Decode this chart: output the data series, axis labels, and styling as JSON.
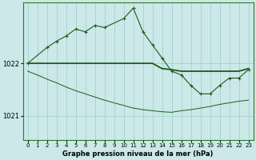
{
  "background_color": "#cce8e8",
  "grid_color": "#99cccc",
  "line_color": "#1a5c1a",
  "title": "Graphe pression niveau de la mer (hPa)",
  "yticks": [
    1021,
    1022
  ],
  "xticks": [
    0,
    1,
    2,
    3,
    4,
    5,
    6,
    7,
    8,
    9,
    10,
    11,
    12,
    13,
    14,
    15,
    16,
    17,
    18,
    19,
    20,
    21,
    22,
    23
  ],
  "xlim": [
    -0.5,
    23.5
  ],
  "ylim": [
    1020.55,
    1023.15
  ],
  "line_flat_x": [
    0,
    1,
    2,
    3,
    4,
    5,
    6,
    7,
    8,
    9,
    10,
    11,
    12,
    13,
    14,
    15,
    16,
    17,
    18,
    19,
    20,
    21,
    22,
    23
  ],
  "line_flat_y": [
    1022.0,
    1022.0,
    1022.0,
    1022.0,
    1022.0,
    1022.0,
    1022.0,
    1022.0,
    1022.0,
    1022.0,
    1022.0,
    1022.0,
    1022.0,
    1022.0,
    1021.9,
    1021.88,
    1021.85,
    1021.85,
    1021.85,
    1021.85,
    1021.85,
    1021.85,
    1021.85,
    1021.9
  ],
  "line_slow_x": [
    0,
    1,
    2,
    3,
    4,
    5,
    6,
    7,
    8,
    9,
    10,
    11,
    12,
    13,
    14,
    15,
    16,
    17,
    18,
    19,
    20,
    21,
    22,
    23
  ],
  "line_slow_y": [
    1021.85,
    1021.78,
    1021.7,
    1021.63,
    1021.55,
    1021.48,
    1021.42,
    1021.36,
    1021.3,
    1021.25,
    1021.2,
    1021.15,
    1021.12,
    1021.1,
    1021.08,
    1021.07,
    1021.1,
    1021.12,
    1021.15,
    1021.18,
    1021.22,
    1021.25,
    1021.28,
    1021.3
  ],
  "line_volatile_x": [
    0,
    2,
    3,
    4,
    5,
    6,
    7,
    8,
    10,
    11,
    12,
    13,
    14,
    15,
    16,
    17,
    18,
    19,
    20,
    21,
    22,
    23
  ],
  "line_volatile_y": [
    1022.0,
    1022.3,
    1022.42,
    1022.52,
    1022.65,
    1022.6,
    1022.72,
    1022.68,
    1022.85,
    1023.05,
    1022.6,
    1022.35,
    1022.1,
    1021.85,
    1021.78,
    1021.58,
    1021.42,
    1021.42,
    1021.58,
    1021.72,
    1021.72,
    1021.88
  ]
}
